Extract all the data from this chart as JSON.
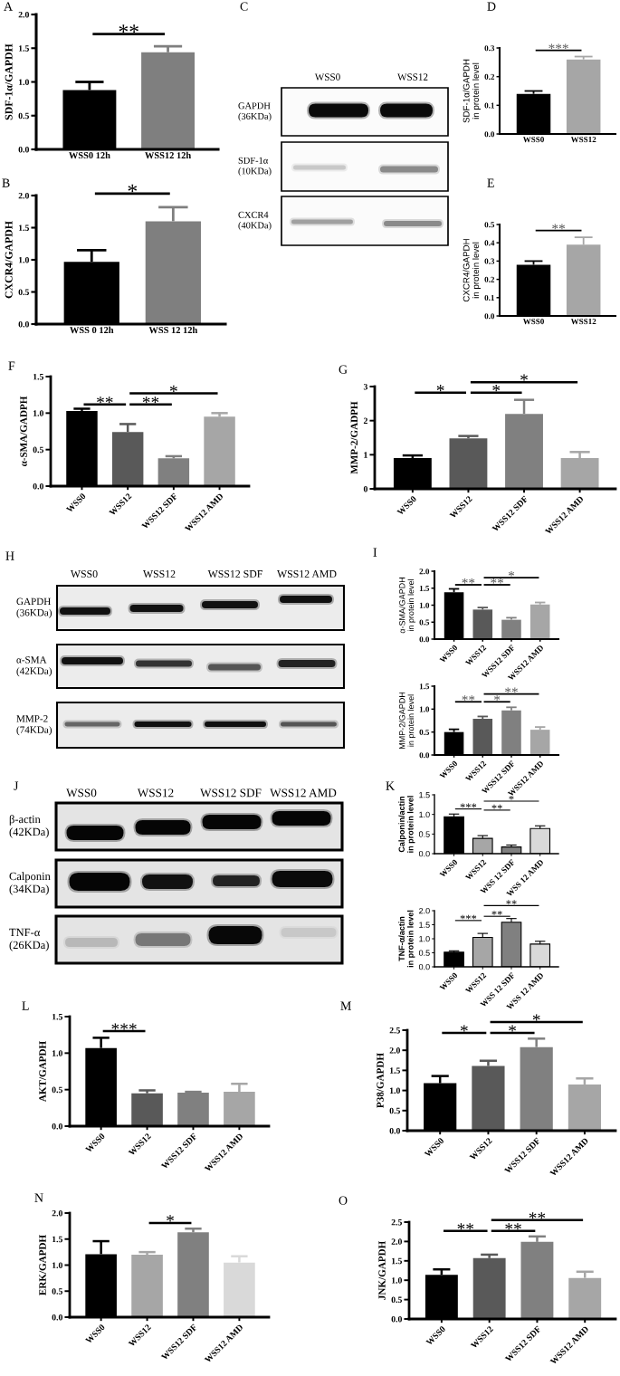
{
  "chart_data": [
    {
      "type": "bar",
      "title": "A",
      "categories": [
        "WSS0 12h",
        "WSS12 12h"
      ],
      "values": [
        0.88,
        1.44
      ],
      "colors": [
        "#000000",
        "#7f7f7f"
      ],
      "errors": [
        [
          0.88,
          1.0
        ],
        [
          1.44,
          1.53
        ]
      ],
      "ylabel": "SDF-1α/GAPDH",
      "ylim": [
        0,
        2
      ],
      "yticks": [
        {
          "value": 0,
          "label": "0.0"
        },
        0.5,
        {
          "value": 1,
          "label": "1.0"
        },
        1.5,
        {
          "value": 2,
          "label": "2.0"
        }
      ],
      "annotations": [
        "**"
      ]
    },
    {
      "type": "other",
      "title": "C",
      "annotations": [
        "WSS0",
        "WSS12",
        "GAPDH\n(36KDa)",
        "SDF-1α\n(10KDa)",
        "CXCR4\n(40KDa)"
      ]
    },
    {
      "type": "bar",
      "title": "D",
      "categories": [
        "WSS0",
        "WSS12"
      ],
      "values": [
        0.14,
        0.26
      ],
      "colors": [
        "#000000",
        "#a6a6a6"
      ],
      "errors": [
        [
          0.14,
          0.15
        ],
        [
          0.26,
          0.27
        ]
      ],
      "ylabel": "SDF-1α/GAPDH\nin protein level",
      "ylim": [
        0,
        0.3
      ],
      "yticks": [
        {
          "value": 0,
          "label": "0.0"
        },
        0.1,
        0.2,
        0.3
      ],
      "annotations": [
        "***"
      ]
    },
    {
      "type": "bar",
      "title": "B",
      "categories": [
        "WSS 0 12h",
        "WSS 12 12h"
      ],
      "values": [
        0.97,
        1.6
      ],
      "colors": [
        "#000000",
        "#7f7f7f"
      ],
      "errors": [
        [
          0.97,
          1.15
        ],
        [
          1.6,
          1.82
        ]
      ],
      "ylabel": "CXCR4/GAPDH",
      "ylim": [
        0,
        2
      ],
      "yticks": [
        {
          "value": 0,
          "label": "0.0"
        },
        0.5,
        {
          "value": 1,
          "label": "1.0"
        },
        1.5,
        {
          "value": 2,
          "label": "2.0"
        }
      ],
      "annotations": [
        "*"
      ]
    },
    {
      "type": "bar",
      "title": "E",
      "categories": [
        "WSS0",
        "WSS12"
      ],
      "values": [
        0.28,
        0.39
      ],
      "colors": [
        "#000000",
        "#a6a6a6"
      ],
      "errors": [
        [
          0.28,
          0.3
        ],
        [
          0.39,
          0.43
        ]
      ],
      "ylabel": "CXCR4/GAPDH\nin protein level",
      "ylim": [
        0,
        0.5
      ],
      "yticks": [
        {
          "value": 0,
          "label": "0.0"
        },
        0.1,
        0.2,
        0.3,
        0.4,
        0.5
      ],
      "annotations": [
        "**"
      ]
    },
    {
      "type": "bar",
      "title": "F",
      "categories": [
        "WSS0",
        "WSS12",
        "WSS12 SDF",
        "WSS12 AMD"
      ],
      "values": [
        1.03,
        0.74,
        0.38,
        0.95
      ],
      "colors": [
        "#000000",
        "#595959",
        "#808080",
        "#a6a6a6"
      ],
      "errors": [
        [
          1.03,
          1.06
        ],
        [
          0.74,
          0.85
        ],
        [
          0.38,
          0.41
        ],
        [
          0.95,
          1.0
        ]
      ],
      "ylabel": "α-SMA/GADPH",
      "ylim": [
        0,
        1.5
      ],
      "yticks": [
        {
          "value": 0,
          "label": "0.0"
        },
        0.5,
        {
          "value": 1,
          "label": "1.0"
        },
        1.5
      ],
      "annotations": [
        "**",
        "**",
        "*"
      ]
    },
    {
      "type": "bar",
      "title": "G",
      "categories": [
        "WSS0",
        "WSS12",
        "WSS12 SDF",
        "WSS12 AMD"
      ],
      "values": [
        0.9,
        1.48,
        2.2,
        0.9
      ],
      "colors": [
        "#000000",
        "#595959",
        "#808080",
        "#a6a6a6"
      ],
      "errors": [
        [
          0.9,
          0.98
        ],
        [
          1.48,
          1.55
        ],
        [
          2.2,
          2.61
        ],
        [
          0.9,
          1.08
        ]
      ],
      "ylabel": "MMP-2/GADPH",
      "ylim": [
        0,
        3
      ],
      "yticks": [
        0,
        1,
        2,
        3
      ],
      "annotations": [
        "*",
        "*",
        "*"
      ]
    },
    {
      "type": "other",
      "title": "H",
      "annotations": [
        "WSS0",
        "WSS12",
        "WSS12 SDF",
        "WSS12 AMD",
        "GAPDH\n(36KDa)",
        "α-SMA\n(42KDa)",
        "MMP-2\n(74KDa)"
      ]
    },
    {
      "type": "bar",
      "title": "I",
      "categories": [
        "WSS0",
        "WSS12",
        "WSS12 SDF",
        "WSS12 AMD"
      ],
      "values": [
        1.38,
        0.87,
        0.57,
        1.02
      ],
      "colors": [
        "#000000",
        "#595959",
        "#808080",
        "#a6a6a6"
      ],
      "errors": [
        [
          1.38,
          1.48
        ],
        [
          0.87,
          0.93
        ],
        [
          0.57,
          0.63
        ],
        [
          1.02,
          1.08
        ]
      ],
      "ylabel": "α-SMA/GAPDH\nin protein level",
      "ylim": [
        0,
        2
      ],
      "yticks": [
        {
          "value": 0,
          "label": "0.0"
        },
        0.5,
        {
          "value": 1,
          "label": "1.0"
        },
        1.5,
        {
          "value": 2,
          "label": "2.0"
        }
      ],
      "annotations": [
        "**",
        "**",
        "*"
      ]
    },
    {
      "type": "bar",
      "categories": [
        "WSS0",
        "WSS12",
        "WSS12 SDF",
        "WSS12 AMD"
      ],
      "values": [
        0.5,
        0.79,
        0.97,
        0.55
      ],
      "colors": [
        "#000000",
        "#595959",
        "#808080",
        "#a6a6a6"
      ],
      "errors": [
        [
          0.5,
          0.56
        ],
        [
          0.79,
          0.84
        ],
        [
          0.97,
          1.04
        ],
        [
          0.55,
          0.61
        ]
      ],
      "ylabel": "MMP-2/GAPDH\nin protein level",
      "ylim": [
        0,
        1.5
      ],
      "yticks": [
        {
          "value": 0,
          "label": "0.0"
        },
        0.5,
        {
          "value": 1,
          "label": "1.0"
        },
        1.5
      ],
      "annotations": [
        "**",
        "*",
        "**"
      ]
    },
    {
      "type": "other",
      "title": "J",
      "annotations": [
        "WSS0",
        "WSS12",
        "WSS12 SDF",
        "WSS12 AMD",
        "β-actin\n(42KDa)",
        "Calponin\n(34KDa)",
        "TNF-α\n(26KDa)"
      ]
    },
    {
      "type": "bar",
      "title": "K",
      "categories": [
        "WSS0",
        "WSS12",
        "WSS 12 SDF",
        "WSS 12 AMD"
      ],
      "values": [
        0.94,
        0.39,
        0.17,
        0.64
      ],
      "colors": [
        "#000000",
        "#a6a6a6",
        "#808080",
        "#d9d9d9"
      ],
      "errors": [
        [
          0.94,
          1.01
        ],
        [
          0.39,
          0.46
        ],
        [
          0.17,
          0.22
        ],
        [
          0.64,
          0.71
        ]
      ],
      "ylabel": "Calponin/actin\nin protein level",
      "ylim": [
        0,
        1.5
      ],
      "yticks": [
        {
          "value": 0,
          "label": "0.0"
        },
        0.5,
        {
          "value": 1,
          "label": "1.0"
        },
        1.5
      ],
      "annotations": [
        "***",
        "**",
        "*"
      ]
    },
    {
      "type": "bar",
      "categories": [
        "WSS0",
        "WSS12",
        "WSS 12 SDF",
        "WSS 12 AMD"
      ],
      "values": [
        0.52,
        1.05,
        1.59,
        0.81
      ],
      "colors": [
        "#000000",
        "#a6a6a6",
        "#808080",
        "#d9d9d9"
      ],
      "errors": [
        [
          0.52,
          0.57
        ],
        [
          1.05,
          1.19
        ],
        [
          1.59,
          1.72
        ],
        [
          0.81,
          0.91
        ]
      ],
      "ylabel": "TNF-α/actin\nin protein level",
      "ylim": [
        0,
        2
      ],
      "yticks": [
        {
          "value": 0,
          "label": "0.0"
        },
        0.5,
        {
          "value": 1,
          "label": "1.0"
        },
        1.5,
        {
          "value": 2,
          "label": "2.0"
        }
      ],
      "annotations": [
        "***",
        "**",
        "**"
      ]
    },
    {
      "type": "bar",
      "title": "L",
      "categories": [
        "WSS0",
        "WSS12",
        "WSS12 SDF",
        "WSS12 AMD"
      ],
      "values": [
        1.07,
        0.45,
        0.46,
        0.47
      ],
      "colors": [
        "#000000",
        "#595959",
        "#808080",
        "#a6a6a6"
      ],
      "errors": [
        [
          1.07,
          1.21
        ],
        [
          0.45,
          0.49
        ],
        [
          0.46,
          0.47
        ],
        [
          0.47,
          0.58
        ]
      ],
      "ylabel": "AKT/GAPDH",
      "ylim": [
        0,
        1.5
      ],
      "yticks": [
        {
          "value": 0,
          "label": "0.0"
        },
        0.5,
        {
          "value": 1,
          "label": "1.0"
        },
        1.5
      ],
      "annotations": [
        "***"
      ]
    },
    {
      "type": "bar",
      "title": "M",
      "categories": [
        "WSS0",
        "WSS12",
        "WSS12 SDF",
        "WSS12 AMD"
      ],
      "values": [
        1.18,
        1.61,
        2.08,
        1.15
      ],
      "colors": [
        "#000000",
        "#595959",
        "#808080",
        "#a6a6a6"
      ],
      "errors": [
        [
          1.18,
          1.36
        ],
        [
          1.61,
          1.74
        ],
        [
          2.08,
          2.29
        ],
        [
          1.15,
          1.3
        ]
      ],
      "ylabel": "P38/GAPDH",
      "ylim": [
        0,
        2.5
      ],
      "yticks": [
        {
          "value": 0,
          "label": "0.0"
        },
        0.5,
        {
          "value": 1,
          "label": "1.0"
        },
        1.5,
        {
          "value": 2,
          "label": "2.0"
        },
        2.5
      ],
      "annotations": [
        "*",
        "*",
        "*"
      ]
    },
    {
      "type": "bar",
      "title": "N",
      "categories": [
        "WSS0",
        "WSS12",
        "WSS12 SDF",
        "WSS12 AMD"
      ],
      "values": [
        1.21,
        1.2,
        1.63,
        1.05
      ],
      "colors": [
        "#000000",
        "#a6a6a6",
        "#808080",
        "#d9d9d9"
      ],
      "errors": [
        [
          1.21,
          1.46
        ],
        [
          1.2,
          1.25
        ],
        [
          1.63,
          1.7
        ],
        [
          1.05,
          1.17
        ]
      ],
      "ylabel": "ERK/GAPDH",
      "ylim": [
        0,
        2
      ],
      "yticks": [
        {
          "value": 0,
          "label": "0.0"
        },
        0.5,
        {
          "value": 1,
          "label": "1.0"
        },
        1.5,
        {
          "value": 2,
          "label": "2.0"
        }
      ],
      "annotations": [
        "*"
      ]
    },
    {
      "type": "bar",
      "title": "O",
      "categories": [
        "WSS0",
        "WSS12",
        "WSS12 SDF",
        "WSS12 AMD"
      ],
      "values": [
        1.14,
        1.57,
        1.99,
        1.06
      ],
      "colors": [
        "#000000",
        "#595959",
        "#808080",
        "#a6a6a6"
      ],
      "errors": [
        [
          1.14,
          1.28
        ],
        [
          1.57,
          1.66
        ],
        [
          1.99,
          2.13
        ],
        [
          1.06,
          1.22
        ]
      ],
      "ylabel": "JNK/GAPDH",
      "ylim": [
        0,
        2.5
      ],
      "yticks": [
        {
          "value": 0,
          "label": "0.0"
        },
        0.5,
        {
          "value": 1,
          "label": "1.0"
        },
        1.5,
        {
          "value": 2,
          "label": "2.0"
        },
        2.5
      ],
      "annotations": [
        "**",
        "**",
        "**"
      ]
    }
  ]
}
